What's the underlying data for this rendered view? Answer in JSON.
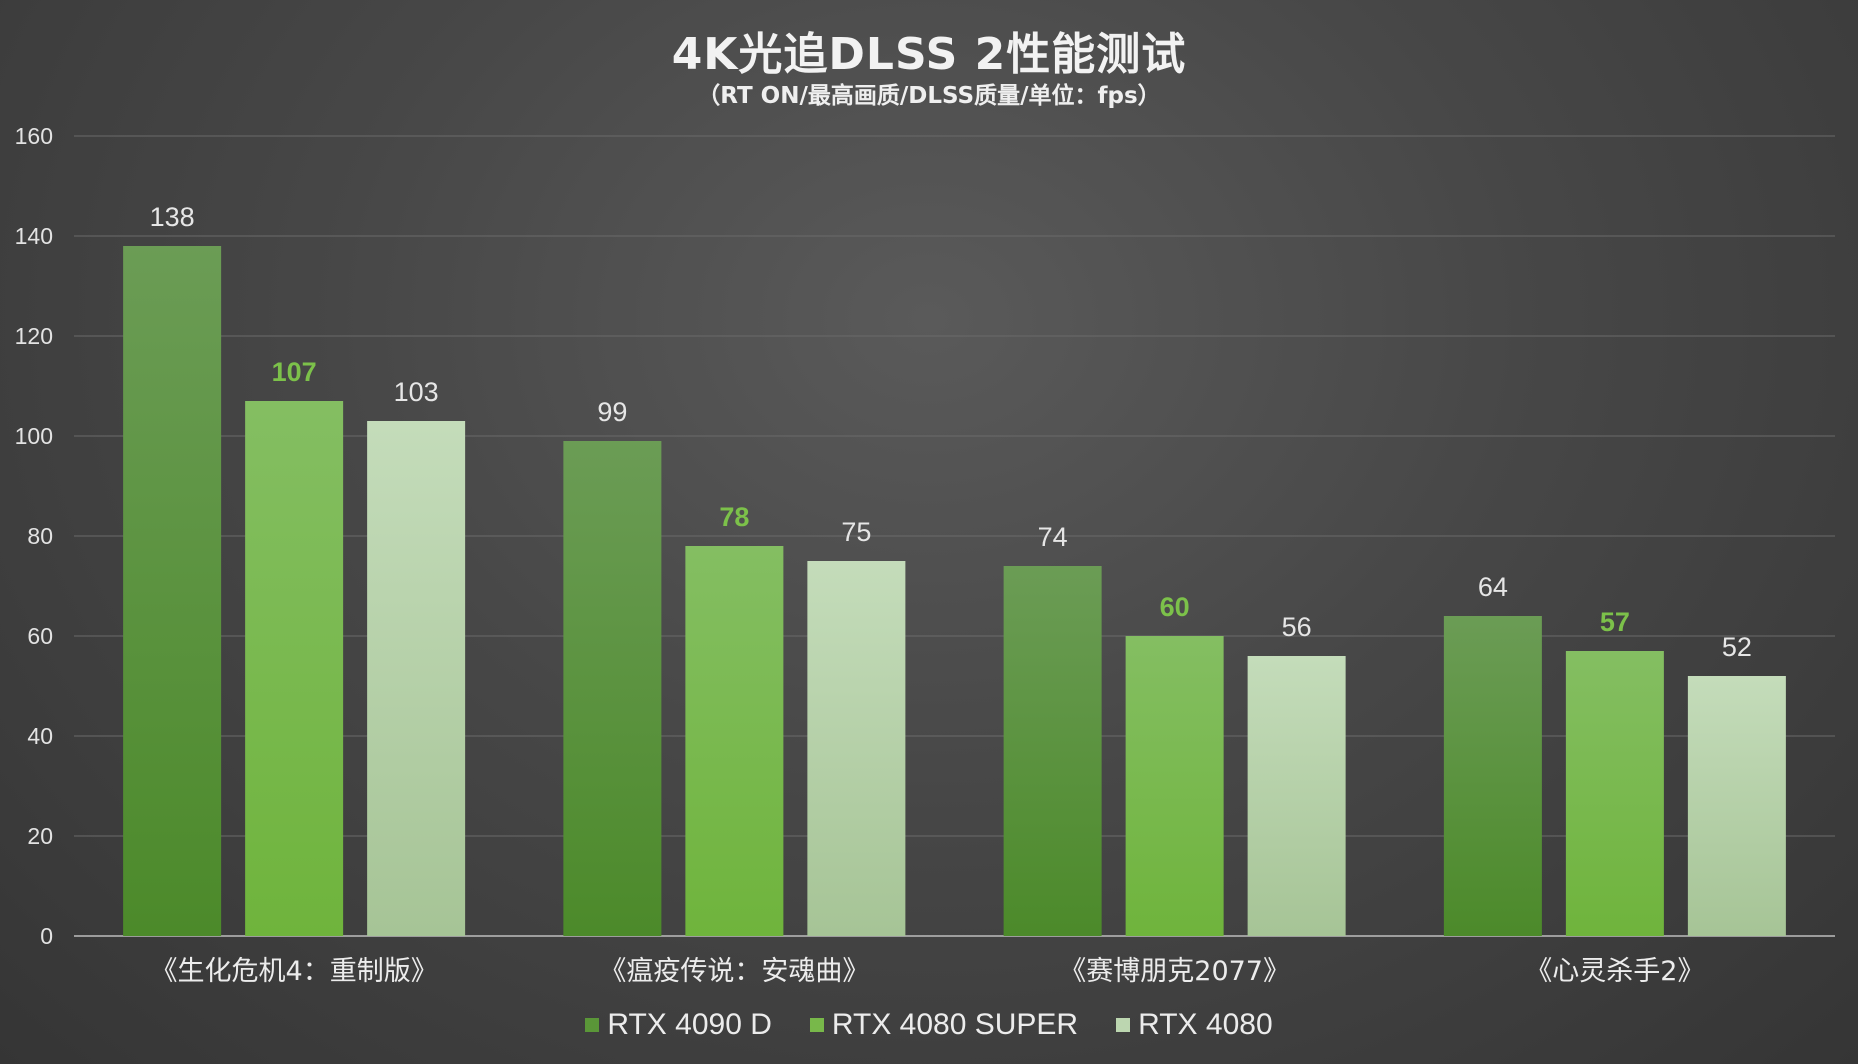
{
  "chart_data": {
    "type": "bar",
    "title": "4K光追DLSS 2性能测试",
    "subtitle": "（RT ON/最高画质/DLSS质量/单位：fps）",
    "categories": [
      "《生化危机4：重制版》",
      "《瘟疫传说：安魂曲》",
      "《赛博朋克2077》",
      "《心灵杀手2》"
    ],
    "series": [
      {
        "name": "RTX 4090 D",
        "values": [
          138,
          99,
          74,
          64
        ],
        "color": "#5a9638"
      },
      {
        "name": "RTX 4080 SUPER",
        "values": [
          107,
          78,
          60,
          57
        ],
        "color": "#78b84a"
      },
      {
        "name": "RTX 4080",
        "values": [
          103,
          75,
          56,
          52
        ],
        "color": "#bcd6b0"
      }
    ],
    "ylim": [
      0,
      160
    ],
    "yticks": [
      0,
      20,
      40,
      60,
      80,
      100,
      120,
      140,
      160
    ],
    "grid": true,
    "legend_position": "bottom"
  }
}
